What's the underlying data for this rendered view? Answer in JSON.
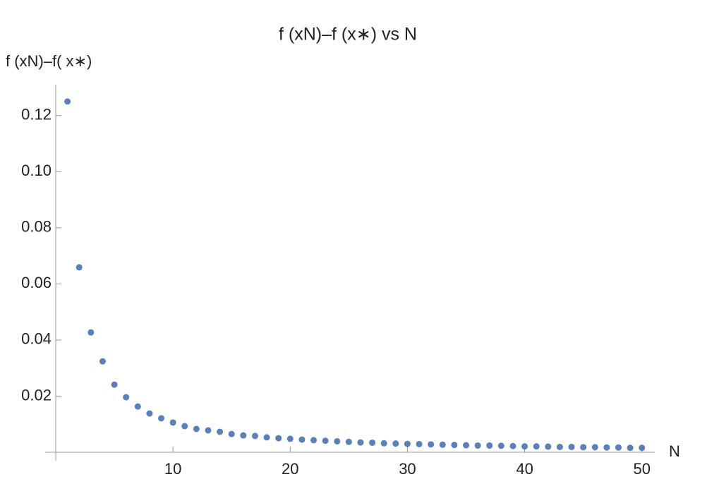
{
  "chart_data": {
    "type": "scatter",
    "title": "f (xN)–f (x∗) vs N",
    "x_label": "N",
    "y_label": "f (xN)–f( x∗)",
    "color": "#5b7fb9",
    "x": [
      1,
      2,
      3,
      4,
      5,
      6,
      7,
      8,
      9,
      10,
      11,
      12,
      13,
      14,
      15,
      16,
      17,
      18,
      19,
      20,
      21,
      22,
      23,
      24,
      25,
      26,
      27,
      28,
      29,
      30,
      31,
      32,
      33,
      34,
      35,
      36,
      37,
      38,
      39,
      40,
      41,
      42,
      43,
      44,
      45,
      46,
      47,
      48,
      49,
      50
    ],
    "values": [
      0.125,
      0.0659,
      0.0427,
      0.0324,
      0.0241,
      0.0196,
      0.0163,
      0.0138,
      0.0121,
      0.0106,
      0.0093,
      0.0083,
      0.0078,
      0.0073,
      0.0065,
      0.006,
      0.0058,
      0.0053,
      0.005,
      0.0048,
      0.0045,
      0.0043,
      0.0041,
      0.0039,
      0.0037,
      0.0035,
      0.0034,
      0.0032,
      0.0031,
      0.003,
      0.0029,
      0.0028,
      0.0027,
      0.0026,
      0.0025,
      0.0024,
      0.0024,
      0.0023,
      0.0022,
      0.0021,
      0.0021,
      0.002,
      0.0019,
      0.0019,
      0.0018,
      0.0018,
      0.0017,
      0.0017,
      0.0016,
      0.0016
    ],
    "xlim": [
      0,
      51.1
    ],
    "ylim": [
      0,
      0.131
    ],
    "xticks": [
      10,
      20,
      30,
      40,
      50
    ],
    "yticks": [
      {
        "value": 0.02,
        "label": "0.02"
      },
      {
        "value": 0.04,
        "label": "0.04"
      },
      {
        "value": 0.06,
        "label": "0.06"
      },
      {
        "value": 0.08,
        "label": "0.08"
      },
      {
        "value": 0.1,
        "label": "0.10"
      },
      {
        "value": 0.12,
        "label": "0.12"
      }
    ]
  }
}
